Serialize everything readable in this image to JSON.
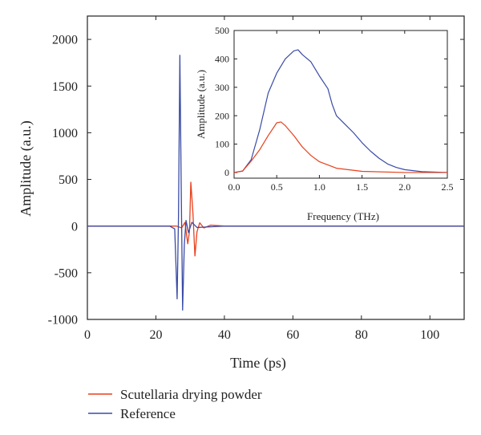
{
  "chart_data": [
    {
      "type": "line",
      "xlabel": "Time (ps)",
      "ylabel": "Amplitude (a.u.)",
      "xlim": [
        0,
        110
      ],
      "ylim": [
        -1000,
        2250
      ],
      "x_ticks": [
        0,
        20,
        40,
        60,
        80,
        100
      ],
      "y_ticks": [
        -1000,
        -500,
        0,
        500,
        1000,
        1500,
        2000
      ],
      "legend_position": "bottom-left, below plot",
      "series": [
        {
          "name": "Scutellaria drying powder",
          "color": "#e8401c",
          "points": [
            [
              0,
              0
            ],
            [
              26,
              0
            ],
            [
              27.5,
              -20
            ],
            [
              28.5,
              40
            ],
            [
              29.3,
              -190
            ],
            [
              29.8,
              -60
            ],
            [
              30.2,
              470
            ],
            [
              30.8,
              150
            ],
            [
              31.4,
              -320
            ],
            [
              32.0,
              -60
            ],
            [
              32.8,
              35
            ],
            [
              34,
              -20
            ],
            [
              36,
              10
            ],
            [
              40,
              0
            ],
            [
              110,
              0
            ]
          ]
        },
        {
          "name": "Reference",
          "color": "#3a4ba6",
          "points": [
            [
              0,
              0
            ],
            [
              24,
              0
            ],
            [
              25.5,
              -30
            ],
            [
              26.2,
              -780
            ],
            [
              26.6,
              100
            ],
            [
              27.0,
              1830
            ],
            [
              27.4,
              400
            ],
            [
              27.8,
              -900
            ],
            [
              28.3,
              -200
            ],
            [
              28.8,
              60
            ],
            [
              29.5,
              -70
            ],
            [
              30.5,
              40
            ],
            [
              32,
              -15
            ],
            [
              40,
              0
            ],
            [
              110,
              0
            ]
          ]
        }
      ]
    },
    {
      "type": "line",
      "xlabel": "Frequency (THz)",
      "ylabel": "Amplitude (a.u.)",
      "xlim": [
        0,
        2.5
      ],
      "ylim": [
        -20,
        500
      ],
      "x_ticks": [
        0.0,
        0.5,
        1.0,
        1.5,
        2.0,
        2.5
      ],
      "y_ticks": [
        0,
        100,
        200,
        300,
        400,
        500
      ],
      "series": [
        {
          "name": "Scutellaria drying powder",
          "color": "#e8401c",
          "points": [
            [
              0,
              0
            ],
            [
              0.1,
              5
            ],
            [
              0.2,
              40
            ],
            [
              0.3,
              80
            ],
            [
              0.4,
              130
            ],
            [
              0.5,
              175
            ],
            [
              0.55,
              178
            ],
            [
              0.6,
              165
            ],
            [
              0.7,
              130
            ],
            [
              0.8,
              90
            ],
            [
              0.9,
              60
            ],
            [
              1.0,
              38
            ],
            [
              1.2,
              15
            ],
            [
              1.5,
              4
            ],
            [
              2.0,
              0
            ],
            [
              2.5,
              0
            ]
          ]
        },
        {
          "name": "Reference",
          "color": "#3a4ba6",
          "points": [
            [
              0,
              0
            ],
            [
              0.1,
              5
            ],
            [
              0.2,
              45
            ],
            [
              0.3,
              150
            ],
            [
              0.4,
              280
            ],
            [
              0.5,
              350
            ],
            [
              0.6,
              400
            ],
            [
              0.7,
              428
            ],
            [
              0.75,
              432
            ],
            [
              0.8,
              415
            ],
            [
              0.9,
              390
            ],
            [
              1.0,
              340
            ],
            [
              1.1,
              295
            ],
            [
              1.15,
              240
            ],
            [
              1.2,
              200
            ],
            [
              1.3,
              170
            ],
            [
              1.4,
              140
            ],
            [
              1.5,
              105
            ],
            [
              1.6,
              75
            ],
            [
              1.7,
              50
            ],
            [
              1.8,
              30
            ],
            [
              1.9,
              18
            ],
            [
              2.0,
              10
            ],
            [
              2.2,
              3
            ],
            [
              2.5,
              0
            ]
          ]
        }
      ]
    }
  ]
}
